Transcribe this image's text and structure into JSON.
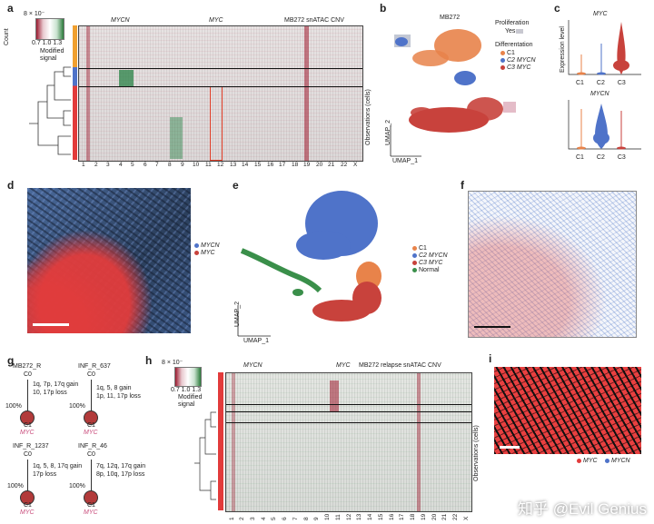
{
  "panel_a": {
    "letter": "a",
    "scale_top": "8 × 10⁻",
    "scale_ticks": "0.7 1.0 1.3",
    "count_label": "Count",
    "modified_signal": "Modified\nsignal",
    "gene1": "MYCN",
    "gene2": "MYC",
    "title": "MB272 snATAC CNV",
    "ylabel": "Observations (cells)",
    "chromosomes": [
      "1",
      "2",
      "3",
      "4",
      "5",
      "6",
      "7",
      "8",
      "9",
      "10",
      "11",
      "12",
      "13",
      "14",
      "15",
      "16",
      "17",
      "18",
      "19",
      "20",
      "21",
      "22",
      "X"
    ]
  },
  "panel_b": {
    "letter": "b",
    "title": "MB272",
    "prolif_label": "Proliferation",
    "prolif_yes": "Yes",
    "diff_label": "Differentation",
    "c1": "C1",
    "c2": "C2 MYCN",
    "c3": "C3 MYC",
    "xlabel": "UMAP_1",
    "ylabel": "UMAP_2"
  },
  "panel_c": {
    "letter": "c",
    "gene_top": "MYC",
    "gene_bottom": "MYCN",
    "ylabel": "Expression level",
    "groups": [
      "C1",
      "C2",
      "C3"
    ]
  },
  "panel_d": {
    "letter": "d",
    "legend": [
      "MYCN",
      "MYC"
    ]
  },
  "panel_e": {
    "letter": "e",
    "legend": [
      "C1",
      "C2 MYCN",
      "C3 MYC",
      "Normal"
    ],
    "xlabel": "UMAP_1",
    "ylabel": "UMAP_2"
  },
  "panel_f": {
    "letter": "f"
  },
  "panel_g": {
    "letter": "g",
    "trees": [
      {
        "name": "MB272_R",
        "root": "C0",
        "leaf": "C1",
        "pct": "100%",
        "events": [
          "1q, 7p, 17q gain",
          "10, 17p loss"
        ],
        "clone": "MYC"
      },
      {
        "name": "INF_R_637",
        "root": "C0",
        "leaf": "C1",
        "pct": "100%",
        "events": [
          "1q, 5, 8 gain",
          "1p, 11, 17p loss"
        ],
        "clone": "MYC"
      },
      {
        "name": "INF_R_1237",
        "root": "C0",
        "leaf": "C1",
        "pct": "100%",
        "events": [
          "1q, 5, 8, 17q gain",
          "17p loss"
        ],
        "clone": "MYC"
      },
      {
        "name": "INF_R_46",
        "root": "C0",
        "leaf": "C1",
        "pct": "100%",
        "events": [
          "7q, 12q, 17q gain",
          "8p, 10q, 17p loss"
        ],
        "clone": "MYC"
      }
    ]
  },
  "panel_h": {
    "letter": "h",
    "scale_top": "8 × 10⁻",
    "scale_ticks": "0.7 1.0 1.3",
    "count_label": "Count",
    "modified_signal": "Modified\nsignal",
    "gene1": "MYCN",
    "gene2": "MYC",
    "title": "MB272 relapse snATAC CNV",
    "ylabel": "Observations (cells)",
    "chromosomes": [
      "1",
      "2",
      "3",
      "4",
      "5",
      "6",
      "7",
      "8",
      "9",
      "10",
      "11",
      "12",
      "13",
      "14",
      "15",
      "16",
      "17",
      "18",
      "19",
      "20",
      "21",
      "22",
      "X"
    ]
  },
  "panel_i": {
    "letter": "i",
    "legend": [
      "MYC",
      "MYCN"
    ]
  },
  "watermark": "知乎 @Evil Genius",
  "colors": {
    "c1": "#e8834a",
    "c2": "#4f73c9",
    "c3": "#c8423c",
    "normal": "#3a8f4a",
    "red": "#e23b3b",
    "blue": "#6d8fd0",
    "orange_bar": "#f0a030"
  }
}
